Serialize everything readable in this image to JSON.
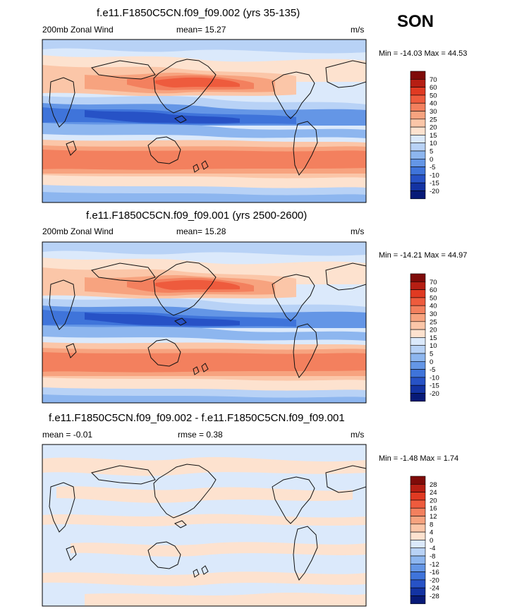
{
  "season": "SON",
  "colors": {
    "warm": [
      "#fde2cf",
      "#fbc6a8",
      "#f7a37f",
      "#f3805e",
      "#ee5b3d",
      "#e03a22",
      "#b61e13",
      "#7f0b09"
    ],
    "cool": [
      "#dbe9fb",
      "#b8d2f6",
      "#8db6ef",
      "#6496e6",
      "#3f74da",
      "#2752c6",
      "#1333a3",
      "#071a78"
    ]
  },
  "chart_data": [
    {
      "type": "contour-map",
      "title": "f.e11.F1850C5CN.f09_f09.002 (yrs 35-135)",
      "left_label": "200mb Zonal Wind",
      "center_label": "mean=  15.27",
      "units": "m/s",
      "minmax": "Min = -14.03 Max =  44.53",
      "levels": [
        "70",
        "60",
        "50",
        "40",
        "30",
        "25",
        "20",
        "15",
        "10",
        "5",
        "0",
        "-5",
        "-10",
        "-15",
        "-20"
      ]
    },
    {
      "type": "contour-map",
      "title": "f.e11.F1850C5CN.f09_f09.001 (yrs 2500-2600)",
      "left_label": "200mb Zonal Wind",
      "center_label": "mean=  15.28",
      "units": "m/s",
      "minmax": "Min = -14.21 Max =  44.97",
      "levels": [
        "70",
        "60",
        "50",
        "40",
        "30",
        "25",
        "20",
        "15",
        "10",
        "5",
        "0",
        "-5",
        "-10",
        "-15",
        "-20"
      ]
    },
    {
      "type": "contour-map",
      "title": "f.e11.F1850C5CN.f09_f09.002 - f.e11.F1850C5CN.f09_f09.001",
      "left_label": "mean =  -0.01",
      "center_label": "rmse =   0.38",
      "units": "m/s",
      "minmax": "Min =  -1.48 Max =   1.74",
      "levels": [
        "28",
        "24",
        "20",
        "16",
        "12",
        "8",
        "4",
        "0",
        "-4",
        "-8",
        "-12",
        "-16",
        "-20",
        "-24",
        "-28"
      ]
    }
  ]
}
